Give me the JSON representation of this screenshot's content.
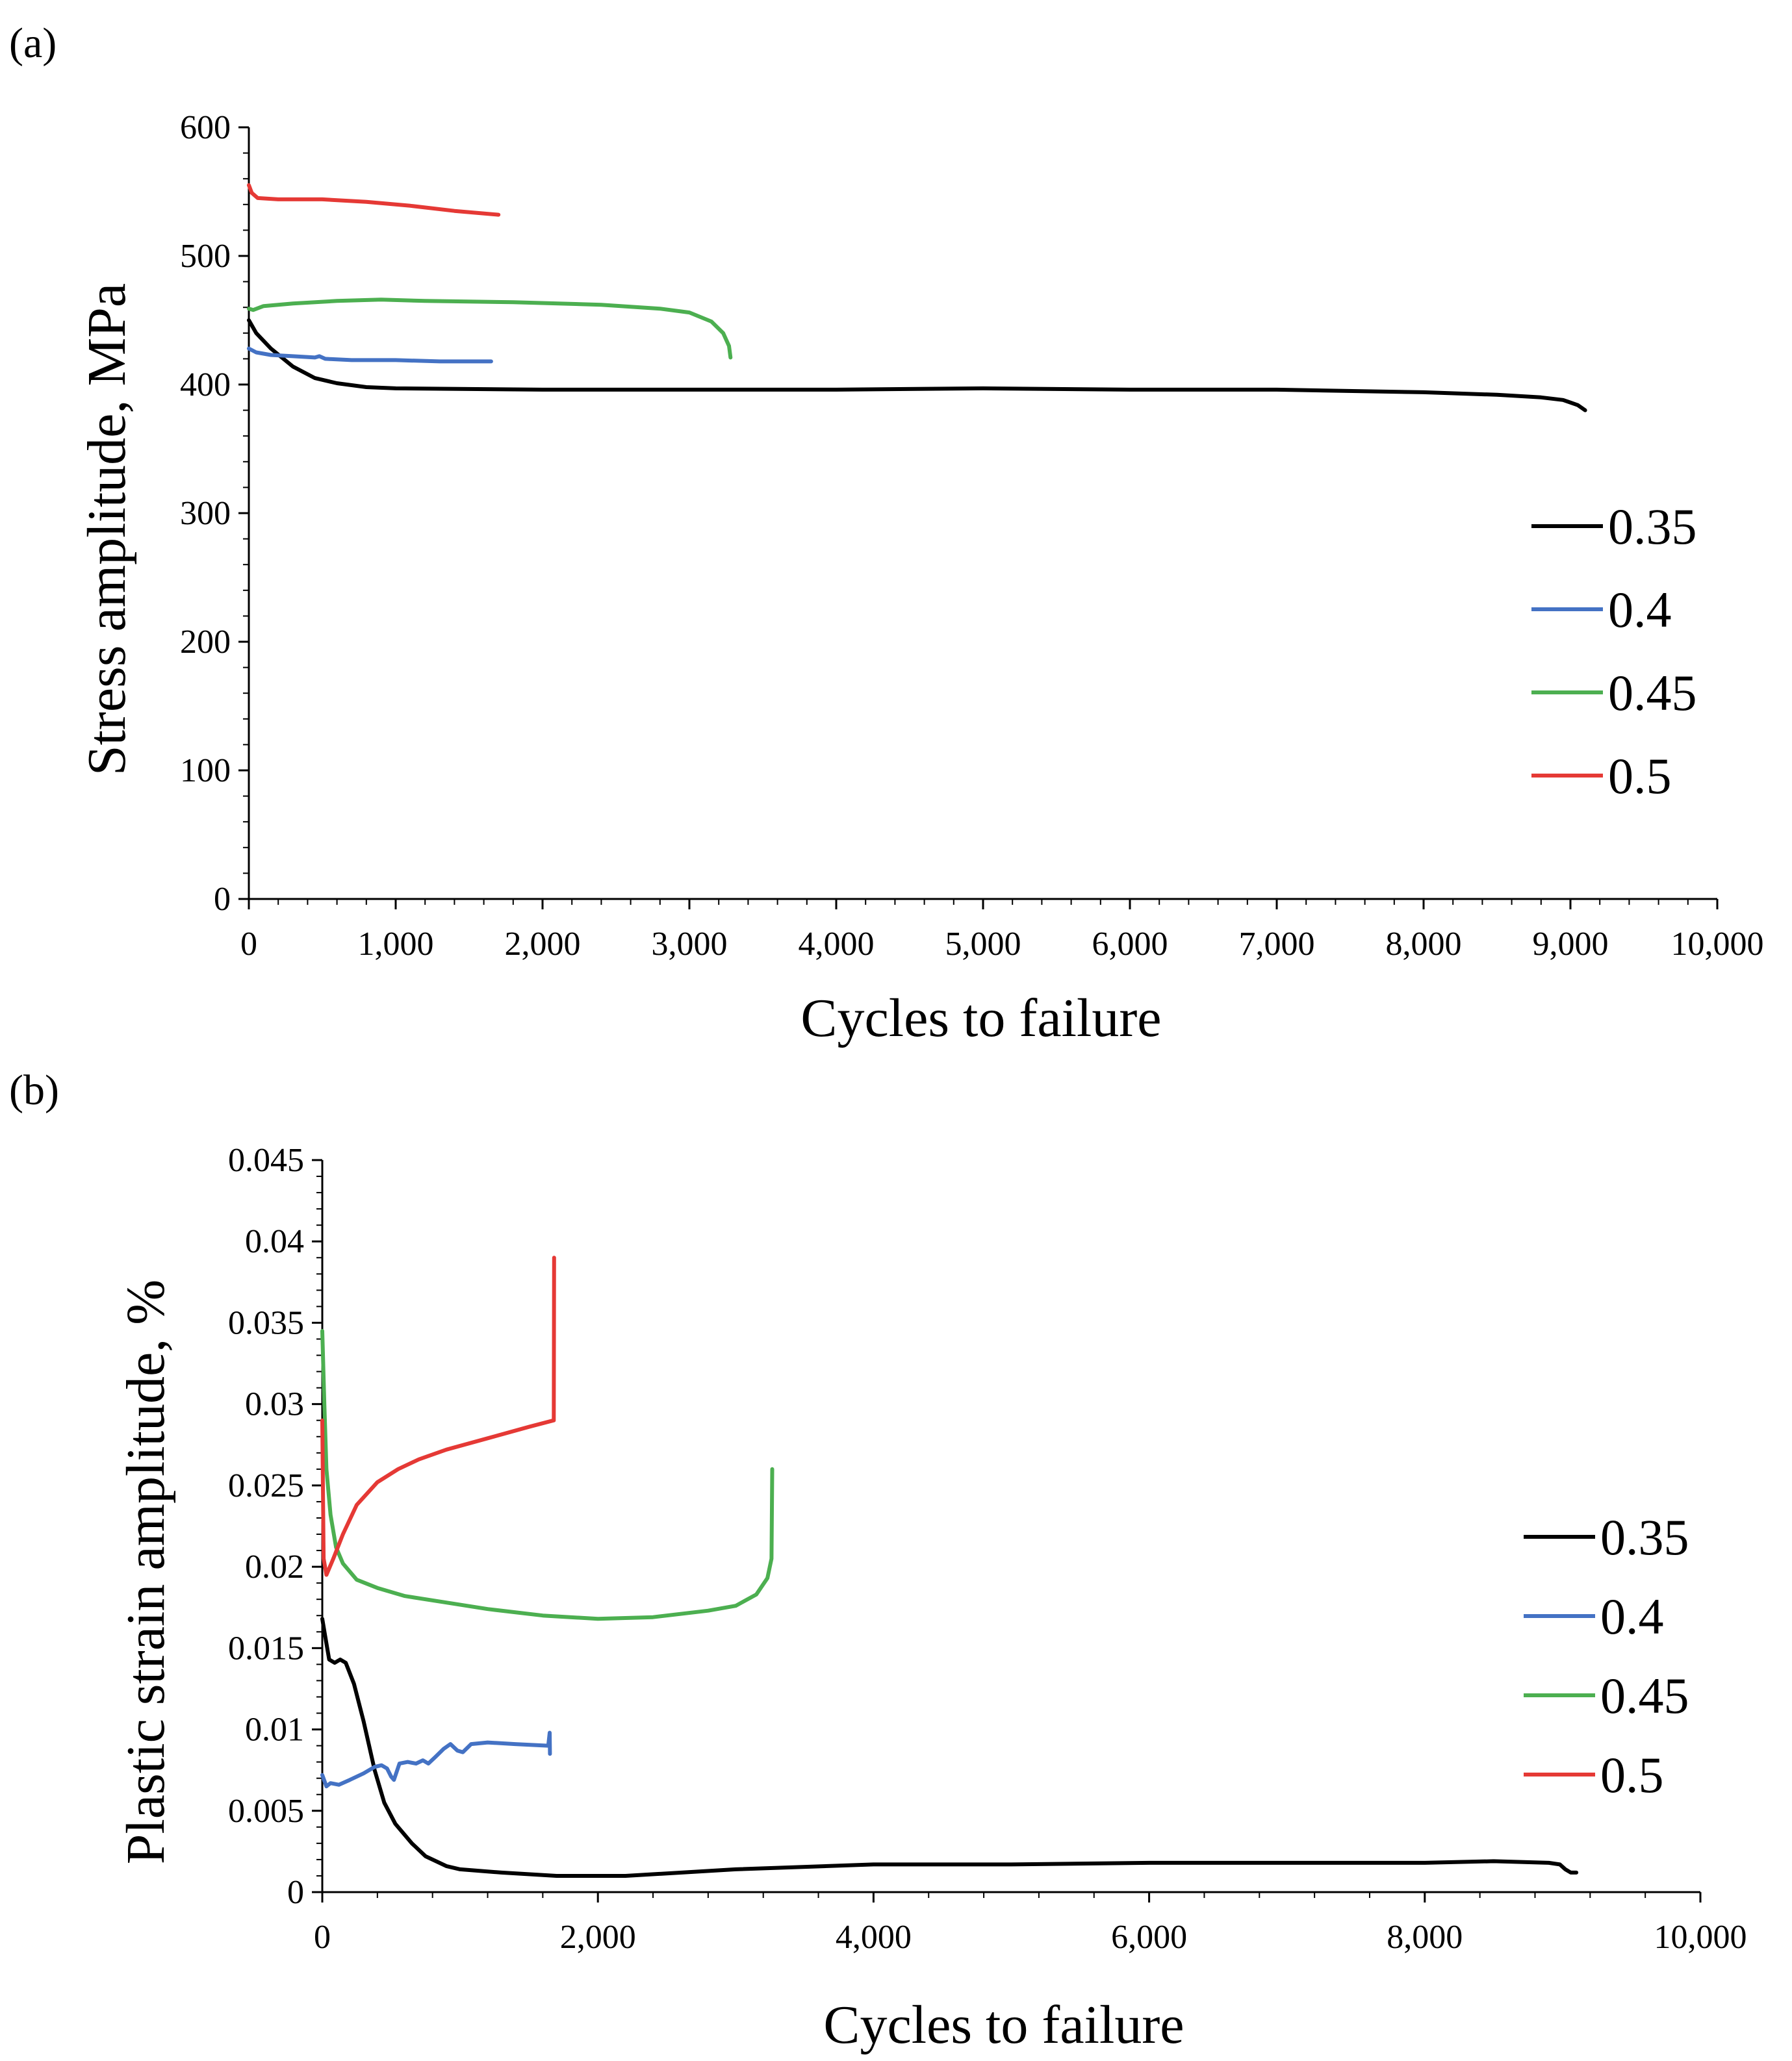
{
  "chart_data": [
    {
      "panel_label": "(a)",
      "type": "line",
      "title": "",
      "xlabel": "Cycles to failure",
      "ylabel": "Stress amplitude, MPa",
      "xlim": [
        0,
        10000
      ],
      "ylim": [
        0,
        600
      ],
      "xticks": [
        0,
        1000,
        2000,
        3000,
        4000,
        5000,
        6000,
        7000,
        8000,
        9000,
        10000
      ],
      "xtick_labels": [
        "0",
        "1,000",
        "2,000",
        "3,000",
        "4,000",
        "5,000",
        "6,000",
        "7,000",
        "8,000",
        "9,000",
        "10,000"
      ],
      "yticks": [
        0,
        100,
        200,
        300,
        400,
        500,
        600
      ],
      "ytick_labels": [
        "0",
        "100",
        "200",
        "300",
        "400",
        "500",
        "600"
      ],
      "legend_position": "right",
      "series": [
        {
          "name": "0.35",
          "color": "#000000",
          "points": [
            [
              0,
              450
            ],
            [
              50,
              440
            ],
            [
              150,
              428
            ],
            [
              300,
              414
            ],
            [
              450,
              405
            ],
            [
              600,
              401
            ],
            [
              800,
              398
            ],
            [
              1000,
              397
            ],
            [
              2000,
              396
            ],
            [
              3000,
              396
            ],
            [
              4000,
              396
            ],
            [
              5000,
              397
            ],
            [
              6000,
              396
            ],
            [
              7000,
              396
            ],
            [
              8000,
              394
            ],
            [
              8500,
              392
            ],
            [
              8800,
              390
            ],
            [
              8950,
              388
            ],
            [
              9050,
              384
            ],
            [
              9100,
              380
            ]
          ]
        },
        {
          "name": "0.4",
          "color": "#4472C4",
          "points": [
            [
              0,
              428
            ],
            [
              50,
              425
            ],
            [
              150,
              423
            ],
            [
              300,
              422
            ],
            [
              450,
              421
            ],
            [
              480,
              422
            ],
            [
              520,
              420
            ],
            [
              700,
              419
            ],
            [
              1000,
              419
            ],
            [
              1300,
              418
            ],
            [
              1650,
              418
            ]
          ]
        },
        {
          "name": "0.45",
          "color": "#4CAF50",
          "points": [
            [
              0,
              459
            ],
            [
              30,
              458
            ],
            [
              100,
              461
            ],
            [
              300,
              463
            ],
            [
              600,
              465
            ],
            [
              900,
              466
            ],
            [
              1200,
              465
            ],
            [
              1800,
              464
            ],
            [
              2400,
              462
            ],
            [
              2800,
              459
            ],
            [
              3000,
              456
            ],
            [
              3150,
              449
            ],
            [
              3230,
              440
            ],
            [
              3270,
              430
            ],
            [
              3280,
              421
            ]
          ]
        },
        {
          "name": "0.5",
          "color": "#E53935",
          "points": [
            [
              0,
              555
            ],
            [
              20,
              549
            ],
            [
              60,
              545
            ],
            [
              200,
              544
            ],
            [
              500,
              544
            ],
            [
              800,
              542
            ],
            [
              1100,
              539
            ],
            [
              1400,
              535
            ],
            [
              1700,
              532
            ]
          ]
        }
      ]
    },
    {
      "panel_label": "(b)",
      "type": "line",
      "title": "",
      "xlabel": "Cycles to failure",
      "ylabel": "Plastic strain amplitude, %",
      "xlim": [
        0,
        10000
      ],
      "ylim": [
        0,
        0.045
      ],
      "xticks": [
        0,
        2000,
        4000,
        6000,
        8000,
        10000
      ],
      "xtick_labels": [
        "0",
        "2,000",
        "4,000",
        "6,000",
        "8,000",
        "10,000"
      ],
      "yticks": [
        0,
        0.005,
        0.01,
        0.015,
        0.02,
        0.025,
        0.03,
        0.035,
        0.04,
        0.045
      ],
      "ytick_labels": [
        "0",
        "0.005",
        "0.01",
        "0.015",
        "0.02",
        "0.025",
        "0.03",
        "0.035",
        "0.04",
        "0.045"
      ],
      "legend_position": "right",
      "series": [
        {
          "name": "0.35",
          "color": "#000000",
          "points": [
            [
              0,
              0.0168
            ],
            [
              20,
              0.0158
            ],
            [
              50,
              0.0143
            ],
            [
              90,
              0.0141
            ],
            [
              130,
              0.0143
            ],
            [
              170,
              0.0141
            ],
            [
              230,
              0.0128
            ],
            [
              300,
              0.0105
            ],
            [
              380,
              0.0075
            ],
            [
              450,
              0.0055
            ],
            [
              530,
              0.0042
            ],
            [
              650,
              0.003
            ],
            [
              750,
              0.0022
            ],
            [
              900,
              0.0016
            ],
            [
              1000,
              0.0014
            ],
            [
              1300,
              0.0012
            ],
            [
              1700,
              0.001
            ],
            [
              2200,
              0.001
            ],
            [
              3000,
              0.0014
            ],
            [
              4000,
              0.0017
            ],
            [
              5000,
              0.0017
            ],
            [
              6000,
              0.0018
            ],
            [
              7000,
              0.0018
            ],
            [
              8000,
              0.0018
            ],
            [
              8500,
              0.0019
            ],
            [
              8900,
              0.0018
            ],
            [
              8980,
              0.0017
            ],
            [
              9020,
              0.0014
            ],
            [
              9060,
              0.0012
            ],
            [
              9100,
              0.0012
            ]
          ]
        },
        {
          "name": "0.4",
          "color": "#4472C4",
          "points": [
            [
              0,
              0.0072
            ],
            [
              30,
              0.0065
            ],
            [
              60,
              0.0067
            ],
            [
              120,
              0.0066
            ],
            [
              200,
              0.0069
            ],
            [
              300,
              0.0073
            ],
            [
              380,
              0.0077
            ],
            [
              430,
              0.0078
            ],
            [
              470,
              0.0076
            ],
            [
              500,
              0.0071
            ],
            [
              520,
              0.0069
            ],
            [
              560,
              0.0079
            ],
            [
              620,
              0.008
            ],
            [
              680,
              0.0079
            ],
            [
              730,
              0.0081
            ],
            [
              770,
              0.0079
            ],
            [
              820,
              0.0083
            ],
            [
              880,
              0.0088
            ],
            [
              930,
              0.0091
            ],
            [
              980,
              0.0087
            ],
            [
              1020,
              0.0086
            ],
            [
              1080,
              0.0091
            ],
            [
              1200,
              0.0092
            ],
            [
              1400,
              0.0091
            ],
            [
              1640,
              0.009
            ],
            [
              1650,
              0.0098
            ],
            [
              1652,
              0.0085
            ]
          ]
        },
        {
          "name": "0.45",
          "color": "#4CAF50",
          "points": [
            [
              0,
              0.0345
            ],
            [
              15,
              0.03
            ],
            [
              30,
              0.026
            ],
            [
              60,
              0.0232
            ],
            [
              100,
              0.0212
            ],
            [
              150,
              0.0202
            ],
            [
              250,
              0.0192
            ],
            [
              400,
              0.0187
            ],
            [
              600,
              0.0182
            ],
            [
              900,
              0.0178
            ],
            [
              1200,
              0.0174
            ],
            [
              1600,
              0.017
            ],
            [
              2000,
              0.0168
            ],
            [
              2400,
              0.0169
            ],
            [
              2800,
              0.0173
            ],
            [
              3000,
              0.0176
            ],
            [
              3150,
              0.0183
            ],
            [
              3230,
              0.0193
            ],
            [
              3260,
              0.0205
            ],
            [
              3265,
              0.026
            ]
          ]
        },
        {
          "name": "0.5",
          "color": "#E53935",
          "points": [
            [
              0,
              0.029
            ],
            [
              10,
              0.0205
            ],
            [
              30,
              0.0195
            ],
            [
              80,
              0.0205
            ],
            [
              150,
              0.022
            ],
            [
              250,
              0.0238
            ],
            [
              400,
              0.0252
            ],
            [
              550,
              0.026
            ],
            [
              700,
              0.0266
            ],
            [
              900,
              0.0272
            ],
            [
              1200,
              0.0279
            ],
            [
              1500,
              0.0286
            ],
            [
              1680,
              0.029
            ],
            [
              1682,
              0.039
            ]
          ]
        }
      ]
    }
  ]
}
